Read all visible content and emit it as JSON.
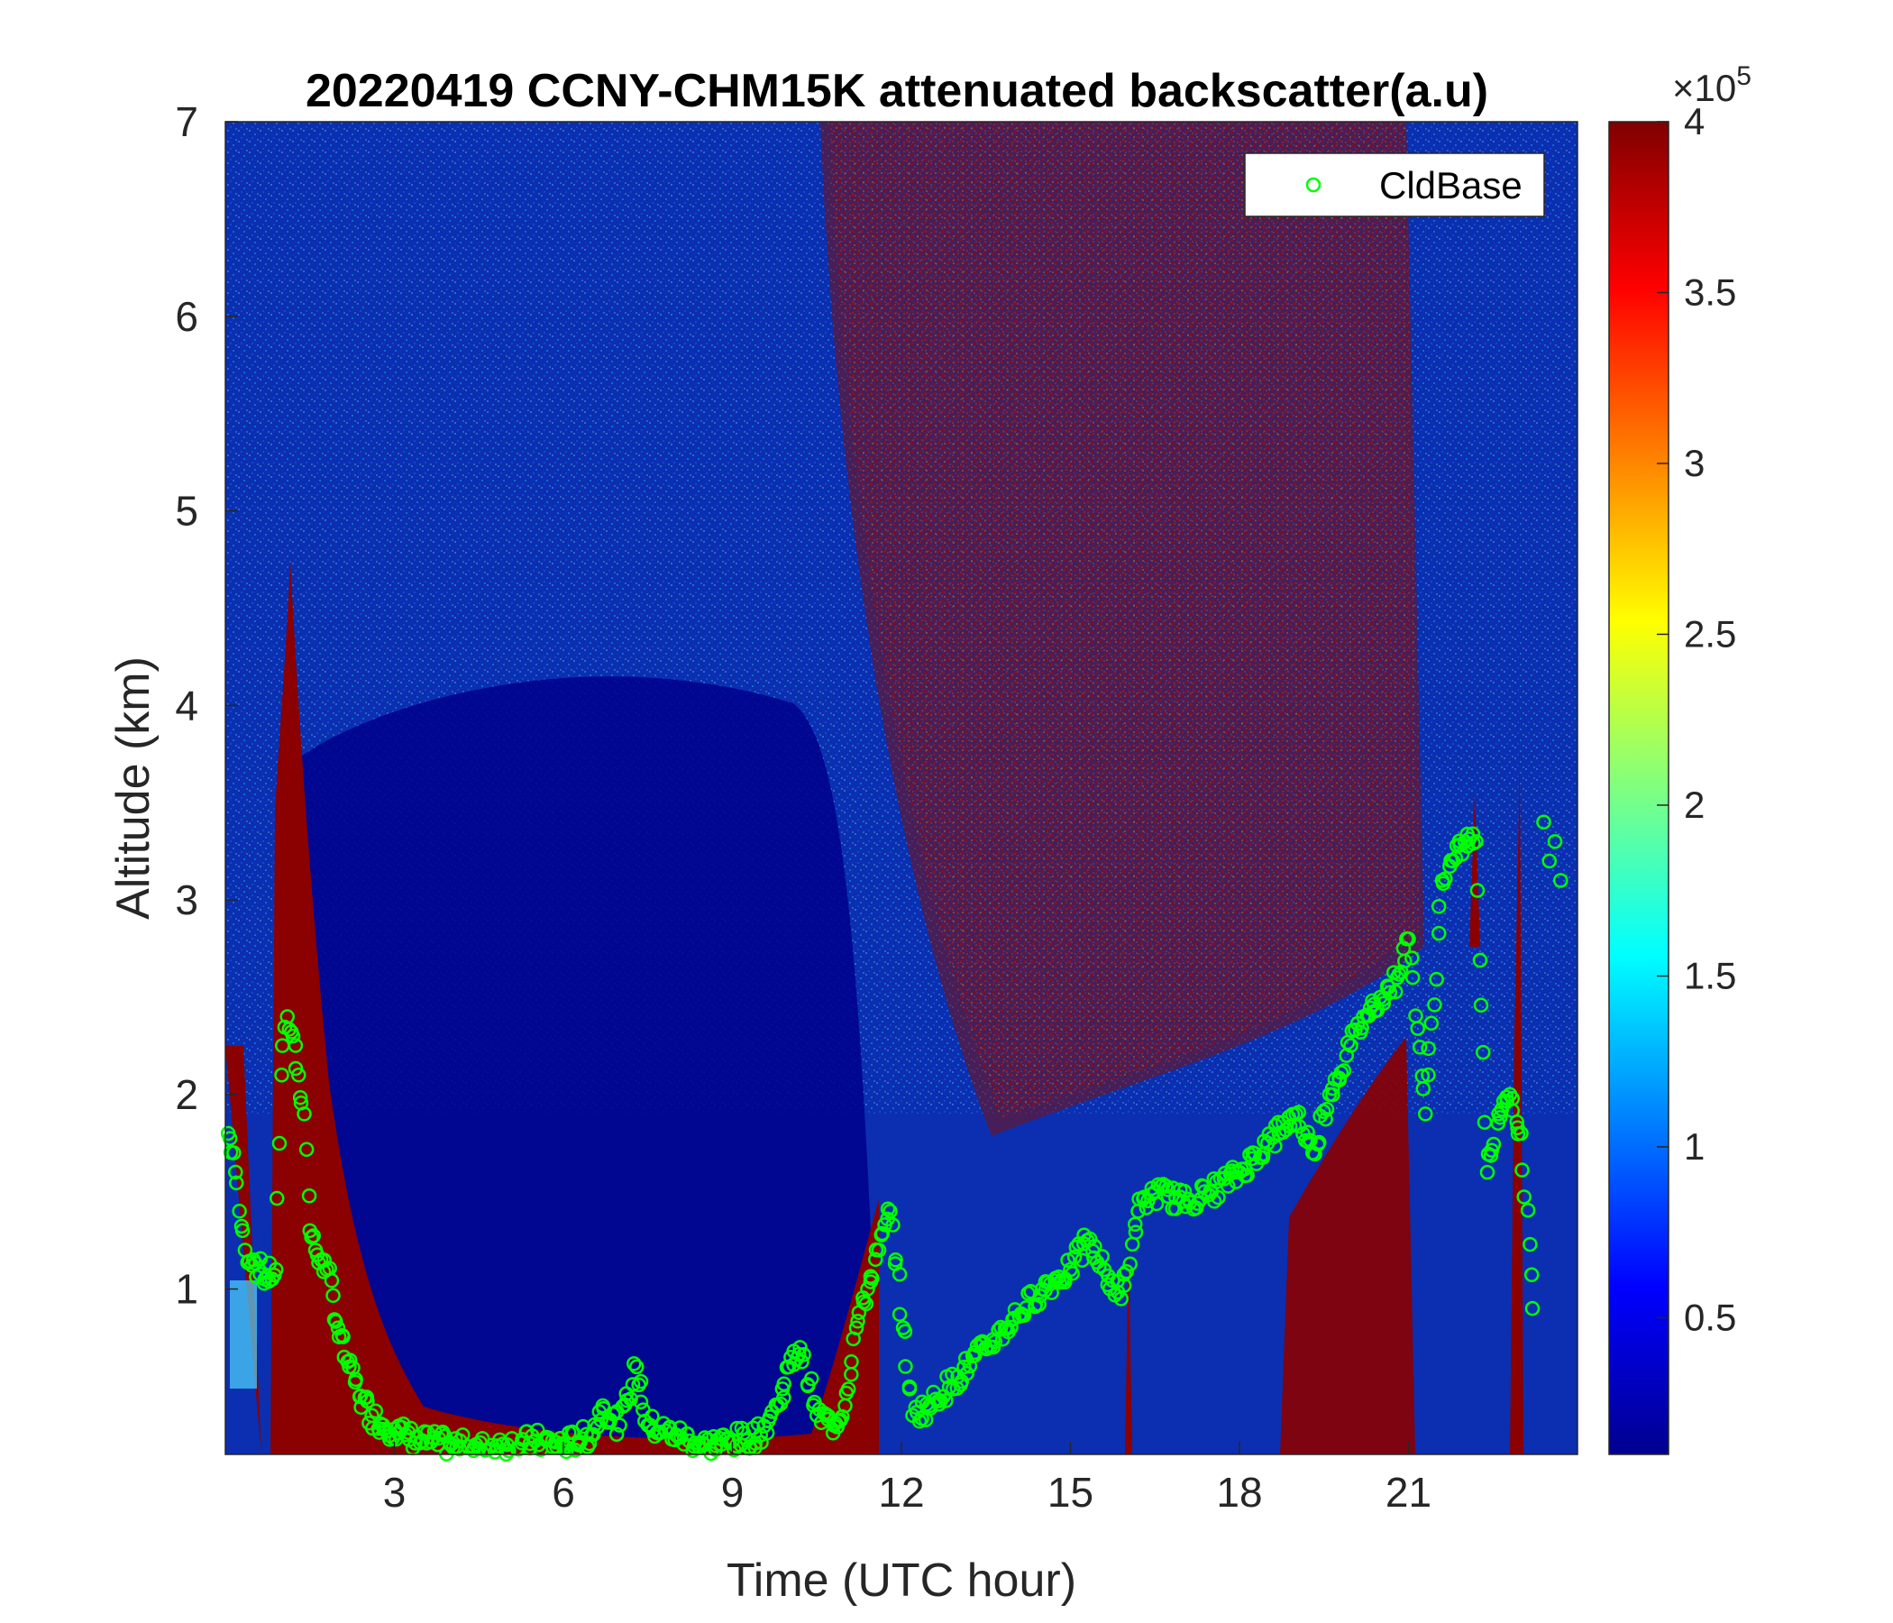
{
  "chart_data": {
    "type": "heatmap",
    "title": "20220419 CCNY-CHM15K attenuated backscatter(a.u)",
    "xlabel": "Time (UTC hour)",
    "ylabel": "Altitude (km)",
    "xlim": [
      0,
      24
    ],
    "ylim": [
      0.15,
      7
    ],
    "xticks": [
      "3",
      "6",
      "9",
      "12",
      "15",
      "18",
      "21"
    ],
    "yticks": [
      "1",
      "2",
      "3",
      "4",
      "5",
      "6",
      "7"
    ],
    "colormap": "jet",
    "colorbar": {
      "min": 0.1,
      "max": 4,
      "ticks": [
        "0.5",
        "1",
        "1.5",
        "2",
        "2.5",
        "3",
        "3.5",
        "4"
      ],
      "exponent_label": "×10",
      "exponent": "5"
    },
    "legend": {
      "position": "top-right",
      "entries": [
        "CldBase"
      ]
    },
    "series": [
      {
        "name": "CldBase",
        "marker": "circle",
        "color": "#00ff00",
        "x": [
          0.05,
          0.15,
          0.25,
          0.35,
          0.5,
          0.7,
          0.9,
          1.0,
          1.1,
          1.2,
          1.3,
          1.4,
          1.5,
          1.6,
          1.7,
          1.8,
          2.0,
          2.2,
          2.4,
          2.6,
          2.8,
          3.0,
          3.2,
          3.5,
          4.0,
          4.5,
          5.0,
          5.5,
          6.0,
          6.5,
          6.7,
          7.0,
          7.3,
          7.5,
          8.0,
          8.5,
          9.0,
          9.5,
          9.8,
          10.0,
          10.2,
          10.5,
          10.8,
          11.0,
          11.2,
          11.4,
          11.6,
          11.8,
          12.2,
          12.5,
          13.0,
          13.5,
          14.0,
          14.5,
          15.0,
          15.3,
          15.6,
          15.9,
          16.2,
          16.5,
          17.0,
          17.5,
          18.0,
          18.5,
          19.0,
          19.3,
          19.6,
          19.9,
          20.2,
          20.5,
          20.8,
          21.0,
          21.3,
          21.6,
          22.0,
          22.2,
          22.4,
          22.6,
          22.8,
          23.0,
          23.2
        ],
        "y": [
          1.8,
          1.7,
          1.4,
          1.2,
          1.15,
          1.05,
          1.1,
          2.1,
          2.4,
          2.3,
          2.1,
          1.9,
          1.3,
          1.2,
          1.15,
          1.1,
          0.8,
          0.6,
          0.45,
          0.35,
          0.3,
          0.28,
          0.25,
          0.22,
          0.2,
          0.18,
          0.2,
          0.22,
          0.2,
          0.25,
          0.4,
          0.3,
          0.6,
          0.3,
          0.25,
          0.2,
          0.22,
          0.25,
          0.4,
          0.6,
          0.7,
          0.35,
          0.3,
          0.4,
          0.8,
          1.0,
          1.2,
          1.4,
          0.35,
          0.4,
          0.55,
          0.7,
          0.85,
          1.0,
          1.1,
          1.25,
          1.1,
          0.95,
          1.4,
          1.5,
          1.45,
          1.5,
          1.6,
          1.75,
          1.9,
          1.7,
          2.0,
          2.2,
          2.4,
          2.5,
          2.6,
          2.8,
          1.9,
          3.1,
          3.3,
          3.3,
          1.6,
          1.9,
          2.0,
          1.8,
          0.9
        ],
        "x_extra": [
          23.4,
          23.5,
          23.6,
          23.7
        ],
        "y_extra": [
          3.4,
          3.2,
          3.3,
          3.1
        ]
      }
    ]
  }
}
